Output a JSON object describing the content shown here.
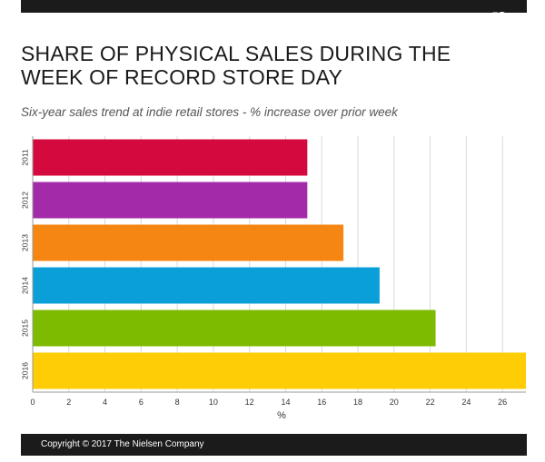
{
  "header": {
    "logo_text": "n",
    "title": "SHARE OF PHYSICAL SALES DURING THE WEEK OF RECORD STORE DAY",
    "subtitle": "Six-year sales trend at indie retail stores - % increase over prior week"
  },
  "chart_data": {
    "type": "bar",
    "orientation": "horizontal",
    "categories": [
      "2011",
      "2012",
      "2013",
      "2014",
      "2015",
      "2016"
    ],
    "values": [
      15.2,
      15.2,
      17.2,
      19.2,
      22.3,
      27.3
    ],
    "colors": [
      "#d40a3e",
      "#a32baa",
      "#f58612",
      "#0a9fd8",
      "#7dbb00",
      "#fecd06"
    ],
    "xlabel": "%",
    "xlim": [
      0,
      27.3
    ],
    "xticks": [
      "0",
      "2",
      "4",
      "6",
      "8",
      "10",
      "12",
      "14",
      "16",
      "18",
      "20",
      "22",
      "24",
      "26"
    ],
    "grid": true
  },
  "footer": {
    "copyright": "Copyright © 2017 The Nielsen Company"
  }
}
